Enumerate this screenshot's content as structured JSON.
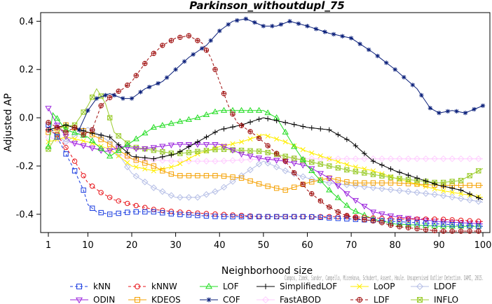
{
  "chart_data": {
    "type": "line",
    "title": "Parkinson_withoutdupl_75",
    "xlabel": "Neighborhood size",
    "ylabel": "Adjusted AP",
    "xlim": [
      1,
      100
    ],
    "ylim": [
      -0.47,
      0.43
    ],
    "xticks": [
      1,
      10,
      20,
      30,
      40,
      50,
      60,
      70,
      80,
      90,
      100
    ],
    "yticks": [
      -0.4,
      -0.2,
      0.0,
      0.2,
      0.4
    ],
    "ytick_labels": [
      "-0.4",
      "-0.2",
      "0.0",
      "0.2",
      "0.4"
    ],
    "grid": false,
    "legend_position": "bottom",
    "credit": "Campos, Zimek, Sander, Campello, Micenkova, Schubert, Assent, Houle. Unsupervised Outlier Detection. DAMI, 2015.",
    "series": [
      {
        "name": "kNN",
        "color": "#1a3ce0",
        "dash": "4,3",
        "marker": "square",
        "points": [
          [
            1,
            -0.03
          ],
          [
            3,
            -0.08
          ],
          [
            5,
            -0.15
          ],
          [
            7,
            -0.22
          ],
          [
            9,
            -0.3
          ],
          [
            10,
            -0.36
          ],
          [
            12,
            -0.39
          ],
          [
            15,
            -0.4
          ],
          [
            20,
            -0.39
          ],
          [
            25,
            -0.39
          ],
          [
            30,
            -0.4
          ],
          [
            40,
            -0.41
          ],
          [
            50,
            -0.41
          ],
          [
            60,
            -0.41
          ],
          [
            70,
            -0.42
          ],
          [
            80,
            -0.43
          ],
          [
            90,
            -0.44
          ],
          [
            100,
            -0.45
          ]
        ]
      },
      {
        "name": "kNNW",
        "color": "#e8141a",
        "dash": "4,3",
        "marker": "circle",
        "points": [
          [
            1,
            -0.05
          ],
          [
            3,
            -0.07
          ],
          [
            6,
            -0.15
          ],
          [
            8,
            -0.21
          ],
          [
            10,
            -0.27
          ],
          [
            13,
            -0.31
          ],
          [
            16,
            -0.34
          ],
          [
            20,
            -0.36
          ],
          [
            25,
            -0.38
          ],
          [
            30,
            -0.39
          ],
          [
            40,
            -0.4
          ],
          [
            50,
            -0.41
          ],
          [
            60,
            -0.41
          ],
          [
            70,
            -0.41
          ],
          [
            80,
            -0.42
          ],
          [
            90,
            -0.42
          ],
          [
            100,
            -0.43
          ]
        ]
      },
      {
        "name": "LOF",
        "color": "#22dd22",
        "dash": "",
        "marker": "triangle",
        "points": [
          [
            1,
            -0.12
          ],
          [
            2,
            0.02
          ],
          [
            5,
            -0.05
          ],
          [
            10,
            -0.08
          ],
          [
            15,
            -0.16
          ],
          [
            20,
            -0.1
          ],
          [
            25,
            -0.04
          ],
          [
            30,
            -0.02
          ],
          [
            35,
            0.0
          ],
          [
            40,
            0.03
          ],
          [
            45,
            0.03
          ],
          [
            50,
            0.03
          ],
          [
            53,
            0.0
          ],
          [
            57,
            -0.12
          ],
          [
            60,
            -0.2
          ],
          [
            65,
            -0.3
          ],
          [
            70,
            -0.38
          ],
          [
            75,
            -0.42
          ],
          [
            80,
            -0.44
          ],
          [
            90,
            -0.45
          ],
          [
            100,
            -0.45
          ]
        ]
      },
      {
        "name": "SimplifiedLOF",
        "color": "#000000",
        "dash": "",
        "marker": "plus",
        "points": [
          [
            1,
            -0.05
          ],
          [
            5,
            -0.03
          ],
          [
            10,
            -0.06
          ],
          [
            15,
            -0.08
          ],
          [
            20,
            -0.16
          ],
          [
            25,
            -0.17
          ],
          [
            30,
            -0.15
          ],
          [
            35,
            -0.1
          ],
          [
            40,
            -0.05
          ],
          [
            45,
            -0.03
          ],
          [
            50,
            0.0
          ],
          [
            55,
            -0.02
          ],
          [
            60,
            -0.04
          ],
          [
            65,
            -0.05
          ],
          [
            70,
            -0.1
          ],
          [
            75,
            -0.18
          ],
          [
            80,
            -0.22
          ],
          [
            85,
            -0.25
          ],
          [
            90,
            -0.28
          ],
          [
            95,
            -0.3
          ],
          [
            100,
            -0.34
          ]
        ]
      },
      {
        "name": "LoOP",
        "color": "#ffee00",
        "dash": "",
        "marker": "x",
        "points": [
          [
            1,
            -0.1
          ],
          [
            5,
            -0.08
          ],
          [
            10,
            -0.1
          ],
          [
            15,
            -0.13
          ],
          [
            20,
            -0.2
          ],
          [
            25,
            -0.22
          ],
          [
            30,
            -0.2
          ],
          [
            35,
            -0.15
          ],
          [
            40,
            -0.12
          ],
          [
            45,
            -0.1
          ],
          [
            50,
            -0.07
          ],
          [
            55,
            -0.1
          ],
          [
            60,
            -0.14
          ],
          [
            65,
            -0.17
          ],
          [
            70,
            -0.2
          ],
          [
            75,
            -0.22
          ],
          [
            80,
            -0.25
          ],
          [
            90,
            -0.3
          ],
          [
            100,
            -0.33
          ]
        ]
      },
      {
        "name": "LDOF",
        "color": "#b6bfe6",
        "dash": "",
        "marker": "diamond",
        "points": [
          [
            1,
            -0.05
          ],
          [
            5,
            -0.1
          ],
          [
            10,
            -0.04
          ],
          [
            15,
            -0.1
          ],
          [
            20,
            -0.23
          ],
          [
            25,
            -0.29
          ],
          [
            30,
            -0.33
          ],
          [
            35,
            -0.33
          ],
          [
            40,
            -0.3
          ],
          [
            45,
            -0.24
          ],
          [
            50,
            -0.18
          ],
          [
            55,
            -0.22
          ],
          [
            60,
            -0.25
          ],
          [
            65,
            -0.27
          ],
          [
            70,
            -0.28
          ],
          [
            80,
            -0.3
          ],
          [
            90,
            -0.32
          ],
          [
            100,
            -0.35
          ]
        ]
      },
      {
        "name": "ODIN",
        "color": "#9a22dd",
        "dash": "",
        "marker": "triangle-down",
        "points": [
          [
            1,
            0.04
          ],
          [
            3,
            -0.03
          ],
          [
            6,
            -0.1
          ],
          [
            10,
            -0.12
          ],
          [
            14,
            -0.14
          ],
          [
            18,
            -0.12
          ],
          [
            22,
            -0.13
          ],
          [
            26,
            -0.12
          ],
          [
            30,
            -0.11
          ],
          [
            35,
            -0.11
          ],
          [
            40,
            -0.11
          ],
          [
            45,
            -0.15
          ],
          [
            50,
            -0.17
          ],
          [
            55,
            -0.18
          ],
          [
            60,
            -0.2
          ],
          [
            65,
            -0.25
          ],
          [
            70,
            -0.33
          ],
          [
            75,
            -0.39
          ],
          [
            80,
            -0.41
          ],
          [
            85,
            -0.42
          ],
          [
            90,
            -0.43
          ],
          [
            100,
            -0.44
          ]
        ]
      },
      {
        "name": "KDEOS",
        "color": "#f5a000",
        "dash": "",
        "marker": "square",
        "points": [
          [
            1,
            -0.06
          ],
          [
            5,
            -0.03
          ],
          [
            10,
            -0.06
          ],
          [
            15,
            -0.11
          ],
          [
            20,
            -0.17
          ],
          [
            25,
            -0.2
          ],
          [
            27,
            -0.22
          ],
          [
            30,
            -0.24
          ],
          [
            35,
            -0.24
          ],
          [
            40,
            -0.24
          ],
          [
            45,
            -0.25
          ],
          [
            50,
            -0.28
          ],
          [
            55,
            -0.3
          ],
          [
            60,
            -0.27
          ],
          [
            65,
            -0.25
          ],
          [
            70,
            -0.27
          ],
          [
            80,
            -0.27
          ],
          [
            90,
            -0.28
          ],
          [
            100,
            -0.28
          ]
        ]
      },
      {
        "name": "COF",
        "color": "#0a1f7a",
        "dash": "",
        "marker": "star",
        "points": [
          [
            8,
            -0.05
          ],
          [
            10,
            0.03
          ],
          [
            12,
            0.08
          ],
          [
            15,
            0.1
          ],
          [
            18,
            0.08
          ],
          [
            20,
            0.08
          ],
          [
            23,
            0.12
          ],
          [
            27,
            0.15
          ],
          [
            30,
            0.2
          ],
          [
            33,
            0.25
          ],
          [
            37,
            0.3
          ],
          [
            40,
            0.36
          ],
          [
            43,
            0.4
          ],
          [
            46,
            0.41
          ],
          [
            50,
            0.38
          ],
          [
            53,
            0.38
          ],
          [
            56,
            0.4
          ],
          [
            60,
            0.38
          ],
          [
            65,
            0.35
          ],
          [
            70,
            0.33
          ],
          [
            75,
            0.27
          ],
          [
            80,
            0.2
          ],
          [
            85,
            0.12
          ],
          [
            88,
            0.04
          ],
          [
            90,
            0.02
          ],
          [
            93,
            0.03
          ],
          [
            96,
            0.02
          ],
          [
            100,
            0.05
          ]
        ]
      },
      {
        "name": "FastABOD",
        "color": "#ffccff",
        "dash": "",
        "marker": "diamond",
        "points": [
          [
            1,
            -0.08
          ],
          [
            5,
            -0.1
          ],
          [
            10,
            -0.12
          ],
          [
            15,
            -0.14
          ],
          [
            20,
            -0.17
          ],
          [
            30,
            -0.18
          ],
          [
            40,
            -0.18
          ],
          [
            50,
            -0.17
          ],
          [
            60,
            -0.17
          ],
          [
            70,
            -0.17
          ],
          [
            80,
            -0.17
          ],
          [
            90,
            -0.17
          ],
          [
            100,
            -0.17
          ]
        ]
      },
      {
        "name": "LDF",
        "color": "#a01010",
        "dash": "4,3",
        "marker": "circle-plus",
        "points": [
          [
            1,
            -0.02
          ],
          [
            3,
            -0.04
          ],
          [
            5,
            -0.06
          ],
          [
            7,
            -0.04
          ],
          [
            9,
            -0.07
          ],
          [
            11,
            -0.05
          ],
          [
            13,
            0.05
          ],
          [
            16,
            0.1
          ],
          [
            18,
            0.12
          ],
          [
            20,
            0.15
          ],
          [
            22,
            0.2
          ],
          [
            24,
            0.25
          ],
          [
            27,
            0.3
          ],
          [
            30,
            0.33
          ],
          [
            33,
            0.34
          ],
          [
            36,
            0.31
          ],
          [
            38,
            0.25
          ],
          [
            40,
            0.15
          ],
          [
            42,
            0.05
          ],
          [
            44,
            -0.02
          ],
          [
            48,
            -0.07
          ],
          [
            50,
            -0.1
          ],
          [
            55,
            -0.18
          ],
          [
            60,
            -0.3
          ],
          [
            64,
            -0.36
          ],
          [
            68,
            -0.4
          ],
          [
            72,
            -0.42
          ],
          [
            76,
            -0.43
          ],
          [
            80,
            -0.45
          ],
          [
            90,
            -0.47
          ],
          [
            100,
            -0.47
          ]
        ]
      },
      {
        "name": "INFLO",
        "color": "#9ccc30",
        "dash": "",
        "marker": "x-square",
        "points": [
          [
            1,
            -0.13
          ],
          [
            4,
            -0.04
          ],
          [
            7,
            -0.03
          ],
          [
            10,
            0.05
          ],
          [
            12,
            0.12
          ],
          [
            14,
            0.06
          ],
          [
            16,
            -0.06
          ],
          [
            20,
            -0.12
          ],
          [
            30,
            -0.15
          ],
          [
            40,
            -0.13
          ],
          [
            50,
            -0.14
          ],
          [
            60,
            -0.18
          ],
          [
            70,
            -0.22
          ],
          [
            80,
            -0.25
          ],
          [
            90,
            -0.27
          ],
          [
            95,
            -0.26
          ],
          [
            100,
            -0.21
          ]
        ]
      }
    ]
  },
  "legend_order": [
    "kNN",
    "kNNW",
    "LOF",
    "SimplifiedLOF",
    "LoOP",
    "LDOF",
    "ODIN",
    "KDEOS",
    "COF",
    "FastABOD",
    "LDF",
    "INFLO"
  ]
}
